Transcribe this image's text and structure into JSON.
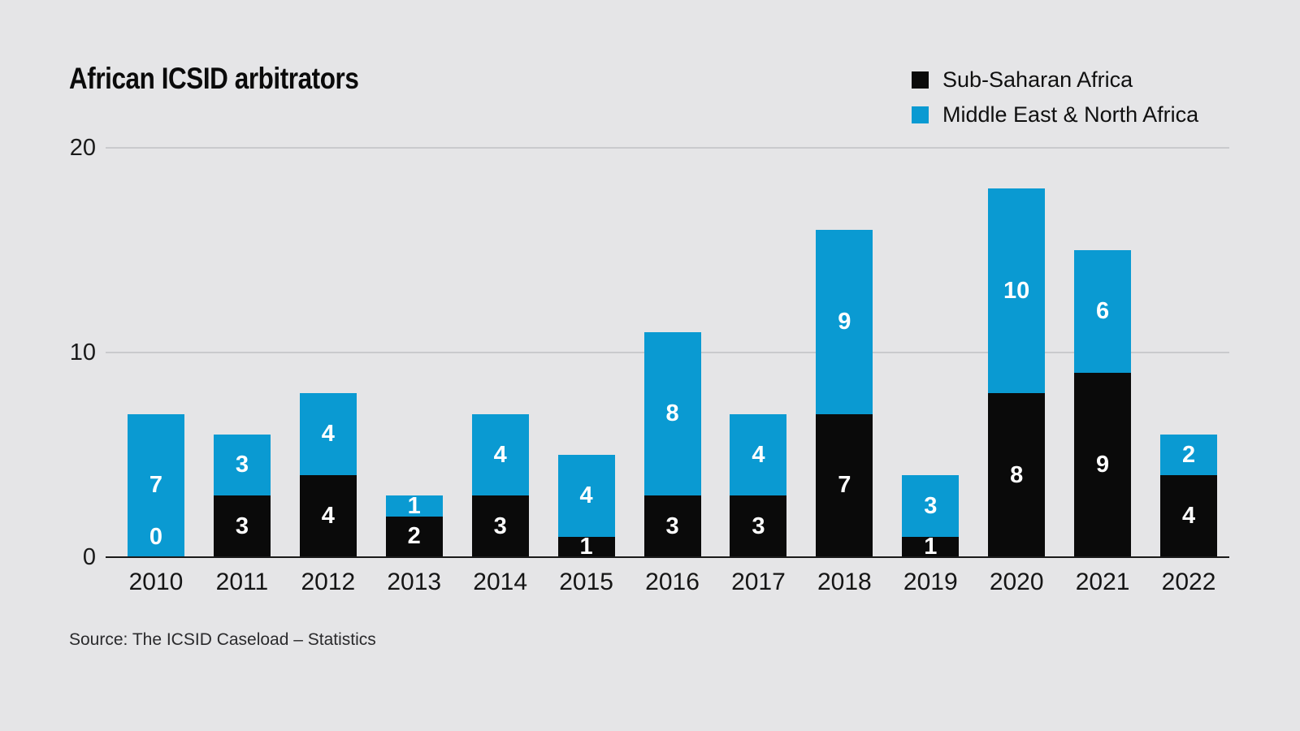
{
  "title": "African ICSID arbitrators",
  "legend": {
    "items": [
      {
        "label": "Sub-Saharan Africa",
        "color": "#0a0a0a"
      },
      {
        "label": "Middle East & North Africa",
        "color": "#0a9ad2"
      }
    ]
  },
  "source": "Source: The ICSID Caseload – Statistics",
  "chart_data": {
    "type": "bar",
    "stacked": true,
    "title": "African ICSID arbitrators",
    "categories": [
      "2010",
      "2011",
      "2012",
      "2013",
      "2014",
      "2015",
      "2016",
      "2017",
      "2018",
      "2019",
      "2020",
      "2021",
      "2022"
    ],
    "series": [
      {
        "name": "Sub-Saharan Africa",
        "color": "#0a0a0a",
        "values": [
          0,
          3,
          4,
          2,
          3,
          1,
          3,
          3,
          7,
          1,
          8,
          9,
          4
        ]
      },
      {
        "name": "Middle East & North Africa",
        "color": "#0a9ad2",
        "values": [
          7,
          3,
          4,
          1,
          4,
          4,
          8,
          4,
          9,
          3,
          10,
          6,
          2
        ]
      }
    ],
    "totals": [
      7,
      6,
      8,
      3,
      7,
      5,
      11,
      7,
      16,
      4,
      18,
      15,
      6
    ],
    "xlabel": "",
    "ylabel": "",
    "ylim": [
      0,
      20
    ],
    "yticks": [
      0,
      10,
      20
    ],
    "grid": "horizontal",
    "bar_value_labels": "white, inside each segment",
    "legend_position": "top-right",
    "colors": {
      "background": "#e5e5e7",
      "gridline": "#c9cacd",
      "axis": "#1a1a1a",
      "tick_text": "#1a1a1a",
      "bar_label_text": "#ffffff"
    },
    "source": "Source: The ICSID Caseload – Statistics"
  }
}
